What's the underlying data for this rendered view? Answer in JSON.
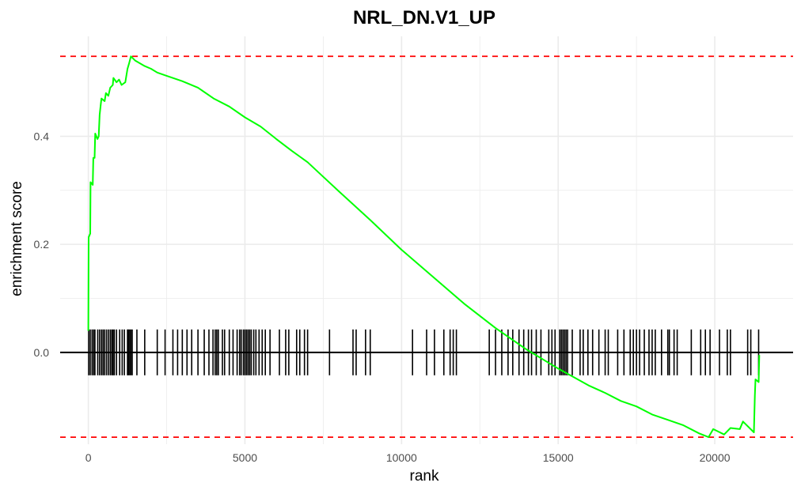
{
  "chart_data": {
    "type": "line",
    "title": "NRL_DN.V1_UP",
    "xlabel": "rank",
    "ylabel": "enrichment score",
    "xlim": [
      -900,
      22500
    ],
    "ylim": [
      -0.17,
      0.585
    ],
    "x_ticks": [
      0,
      5000,
      10000,
      15000,
      20000
    ],
    "x_tick_labels": [
      "0",
      "5000",
      "10000",
      "15000",
      "20000"
    ],
    "y_ticks": [
      0.0,
      0.2,
      0.4
    ],
    "y_tick_labels": [
      "0.0",
      "0.2",
      "0.4"
    ],
    "grid": true,
    "colors": {
      "curve": "#00ff00",
      "threshold": "#ff0000",
      "ticks": "#000000",
      "grid": "#ebebeb"
    },
    "thresholds": [
      0.548,
      -0.157
    ],
    "series": [
      {
        "points": [
          [
            0,
            0.04
          ],
          [
            10,
            0.213
          ],
          [
            60,
            0.22
          ],
          [
            70,
            0.315
          ],
          [
            140,
            0.31
          ],
          [
            160,
            0.36
          ],
          [
            200,
            0.36
          ],
          [
            220,
            0.405
          ],
          [
            290,
            0.395
          ],
          [
            330,
            0.4
          ],
          [
            360,
            0.44
          ],
          [
            400,
            0.46
          ],
          [
            420,
            0.47
          ],
          [
            520,
            0.465
          ],
          [
            560,
            0.48
          ],
          [
            640,
            0.475
          ],
          [
            700,
            0.49
          ],
          [
            780,
            0.495
          ],
          [
            800,
            0.508
          ],
          [
            900,
            0.5
          ],
          [
            980,
            0.505
          ],
          [
            1060,
            0.495
          ],
          [
            1180,
            0.5
          ],
          [
            1250,
            0.525
          ],
          [
            1300,
            0.535
          ],
          [
            1360,
            0.548
          ],
          [
            1500,
            0.54
          ],
          [
            1800,
            0.53
          ],
          [
            2000,
            0.525
          ],
          [
            2200,
            0.518
          ],
          [
            2500,
            0.512
          ],
          [
            3000,
            0.502
          ],
          [
            3500,
            0.49
          ],
          [
            4000,
            0.47
          ],
          [
            4500,
            0.455
          ],
          [
            5000,
            0.435
          ],
          [
            5500,
            0.418
          ],
          [
            6000,
            0.395
          ],
          [
            6500,
            0.373
          ],
          [
            7000,
            0.352
          ],
          [
            7500,
            0.325
          ],
          [
            8000,
            0.298
          ],
          [
            9000,
            0.245
          ],
          [
            10000,
            0.19
          ],
          [
            11000,
            0.14
          ],
          [
            12000,
            0.09
          ],
          [
            13000,
            0.045
          ],
          [
            14000,
            0.005
          ],
          [
            15000,
            -0.03
          ],
          [
            16000,
            -0.062
          ],
          [
            16500,
            -0.075
          ],
          [
            17000,
            -0.09
          ],
          [
            17500,
            -0.1
          ],
          [
            18000,
            -0.115
          ],
          [
            18500,
            -0.125
          ],
          [
            19000,
            -0.135
          ],
          [
            19500,
            -0.15
          ],
          [
            19800,
            -0.157
          ],
          [
            19950,
            -0.142
          ],
          [
            20300,
            -0.152
          ],
          [
            20500,
            -0.14
          ],
          [
            20800,
            -0.142
          ],
          [
            20900,
            -0.128
          ],
          [
            21250,
            -0.148
          ],
          [
            21280,
            -0.08
          ],
          [
            21300,
            -0.05
          ],
          [
            21400,
            -0.055
          ],
          [
            21420,
            -0.005
          ]
        ]
      }
    ],
    "gene_positions": [
      10,
      60,
      120,
      170,
      210,
      300,
      360,
      420,
      470,
      520,
      580,
      640,
      700,
      750,
      790,
      830,
      900,
      1000,
      1080,
      1150,
      1250,
      1280,
      1320,
      1360,
      1400,
      1550,
      1800,
      2200,
      2450,
      2700,
      2850,
      3000,
      3150,
      3300,
      3500,
      3700,
      3850,
      3980,
      4050,
      4100,
      4150,
      4280,
      4350,
      4500,
      4620,
      4750,
      4830,
      4880,
      4950,
      5000,
      5050,
      5100,
      5150,
      5200,
      5280,
      5350,
      5450,
      5550,
      5650,
      5800,
      6100,
      6300,
      6400,
      6650,
      6750,
      6900,
      7000,
      7700,
      8450,
      8550,
      8850,
      9000,
      10350,
      10800,
      11050,
      11350,
      11550,
      11650,
      11750,
      12800,
      13000,
      13200,
      13400,
      13550,
      13750,
      13900,
      14050,
      14150,
      14300,
      14450,
      14700,
      14800,
      14900,
      15050,
      15100,
      15150,
      15200,
      15250,
      15300,
      15450,
      15700,
      15800,
      15950,
      16100,
      16300,
      16500,
      16600,
      16900,
      17100,
      17300,
      17400,
      17500,
      17600,
      17750,
      17900,
      18000,
      18100,
      18300,
      18500,
      18550,
      18700,
      18800,
      19250,
      19550,
      19700,
      19850,
      20150,
      20400,
      20500,
      21050,
      21150,
      21400
    ]
  }
}
